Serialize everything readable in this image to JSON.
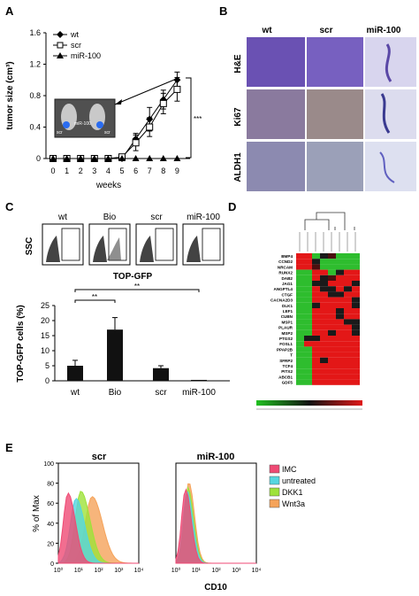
{
  "panels": {
    "A": "A",
    "B": "B",
    "C": "C",
    "D": "D",
    "E": "E"
  },
  "chart_data": [
    {
      "id": "A",
      "type": "line",
      "title": "",
      "ylabel": "tumor size (cm³)",
      "xlabel": "weeks",
      "ylim": [
        0,
        1.6
      ],
      "yticks": [
        "0",
        "0.4",
        "0.8",
        "1.2",
        "1.6"
      ],
      "x": [
        0,
        1,
        2,
        3,
        4,
        5,
        6,
        7,
        8,
        9
      ],
      "series": [
        {
          "name": "wt",
          "marker": "diamond",
          "values": [
            0,
            0,
            0,
            0,
            0,
            0,
            0.25,
            0.5,
            0.75,
            1.0
          ],
          "errors": [
            0,
            0,
            0,
            0,
            0,
            0,
            0.07,
            0.15,
            0.12,
            0.1
          ]
        },
        {
          "name": "scr",
          "marker": "square-open",
          "values": [
            0,
            0,
            0,
            0,
            0,
            0.02,
            0.2,
            0.4,
            0.7,
            0.88
          ],
          "errors": [
            0,
            0,
            0,
            0,
            0,
            0.02,
            0.1,
            0.12,
            0.13,
            0.15
          ]
        },
        {
          "name": "miR-100",
          "marker": "triangle",
          "values": [
            0,
            0,
            0,
            0,
            0,
            0,
            0,
            0,
            0,
            0
          ],
          "errors": [
            0,
            0,
            0,
            0,
            0,
            0,
            0,
            0,
            0,
            0
          ]
        }
      ],
      "significance": "***",
      "inset_labels": [
        "scr",
        "miR-100",
        "scr"
      ]
    },
    {
      "id": "C-bar",
      "type": "bar",
      "ylabel": "TOP-GFP cells (%)",
      "ylim": [
        0,
        25
      ],
      "yticks": [
        "0",
        "5",
        "10",
        "15",
        "20",
        "25"
      ],
      "categories": [
        "wt",
        "Bio",
        "scr",
        "miR-100"
      ],
      "values": [
        5,
        17,
        4.2,
        0.3
      ],
      "errors": [
        1.8,
        4,
        0.8,
        0
      ],
      "significance": [
        "**",
        "**"
      ]
    },
    {
      "id": "E",
      "type": "area",
      "xlabel": "CD10",
      "ylabel": "% of Max",
      "yticks": [
        "0",
        "20",
        "40",
        "60",
        "80",
        "100"
      ],
      "xticks": [
        "10⁰",
        "10¹",
        "10²",
        "10³",
        "10⁴"
      ],
      "subplots": [
        "scr",
        "miR-100"
      ],
      "legend": [
        "IMC",
        "untreated",
        "DKK1",
        "Wnt3a"
      ],
      "legend_colors": [
        "#ef4a74",
        "#55d6e0",
        "#9de23a",
        "#f5a35a"
      ]
    }
  ],
  "panelB": {
    "columns": [
      "wt",
      "scr",
      "miR-100"
    ],
    "rows": [
      "H&E",
      "Ki67",
      "ALDH1"
    ]
  },
  "panelC": {
    "flow_labels": [
      "wt",
      "Bio",
      "scr",
      "miR-100"
    ],
    "y_axis": "SSC",
    "x_axis": "TOP-GFP"
  },
  "panelD": {
    "genes": [
      "BMP4",
      "CCND2",
      "NRCAM",
      "RUNX2",
      "DAB2",
      "JAG1",
      "ANGPTL4",
      "CTGF",
      "CACNA2D3",
      "DLK1",
      "LEF1",
      "CUBN",
      "MSP1",
      "PLAUR",
      "MSP2",
      "PTGS2",
      "FOSL1",
      "PPAP2B",
      "T",
      "SFRP2",
      "TCF4",
      "PITX2",
      "ABCB1",
      "GDF5"
    ]
  }
}
